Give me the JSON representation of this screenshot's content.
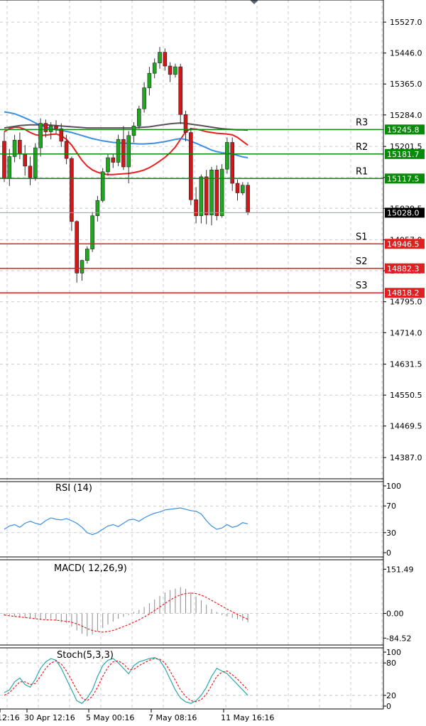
{
  "chart_data": [
    {
      "type": "candlestick",
      "panel": "price",
      "ylim": [
        14350,
        15570
      ],
      "y_ticks": [
        "15527.0",
        "15446.0",
        "15365.0",
        "15284.0",
        "15201.5",
        "15120.5",
        "15039.5",
        "14957.0",
        "14876.0",
        "14795.0",
        "14714.0",
        "14631.5",
        "14550.5",
        "14469.5",
        "14387.0"
      ],
      "current_price": "15028.0",
      "levels": [
        {
          "name": "R3",
          "value": 15245.8,
          "label": "15245.8",
          "color": "#0a8a0a"
        },
        {
          "name": "R2",
          "value": 15181.7,
          "label": "15181.7",
          "color": "#0a8a0a"
        },
        {
          "name": "R1",
          "value": 15117.5,
          "label": "15117.5",
          "color": "#0a8a0a"
        },
        {
          "name": "S1",
          "value": 14946.5,
          "label": "14946.5",
          "color": "#e02020"
        },
        {
          "name": "S2",
          "value": 14882.3,
          "label": "14882.3",
          "color": "#e02020"
        },
        {
          "name": "S3",
          "value": 14818.2,
          "label": "14818.2",
          "color": "#e02020"
        }
      ],
      "candles": [
        {
          "o": 15215,
          "h": 15240,
          "l": 15108,
          "c": 15118
        },
        {
          "o": 15118,
          "h": 15195,
          "l": 15098,
          "c": 15175
        },
        {
          "o": 15175,
          "h": 15232,
          "l": 15160,
          "c": 15218
        },
        {
          "o": 15218,
          "h": 15238,
          "l": 15168,
          "c": 15182
        },
        {
          "o": 15182,
          "h": 15205,
          "l": 15125,
          "c": 15150
        },
        {
          "o": 15150,
          "h": 15175,
          "l": 15100,
          "c": 15120
        },
        {
          "o": 15120,
          "h": 15210,
          "l": 15112,
          "c": 15198
        },
        {
          "o": 15198,
          "h": 15275,
          "l": 15175,
          "c": 15262
        },
        {
          "o": 15262,
          "h": 15272,
          "l": 15225,
          "c": 15240
        },
        {
          "o": 15240,
          "h": 15265,
          "l": 15220,
          "c": 15255
        },
        {
          "o": 15255,
          "h": 15270,
          "l": 15235,
          "c": 15248
        },
        {
          "o": 15248,
          "h": 15262,
          "l": 15200,
          "c": 15215
        },
        {
          "o": 15215,
          "h": 15232,
          "l": 15155,
          "c": 15170
        },
        {
          "o": 15170,
          "h": 15175,
          "l": 14980,
          "c": 15005
        },
        {
          "o": 15005,
          "h": 15008,
          "l": 14845,
          "c": 14870
        },
        {
          "o": 14870,
          "h": 14905,
          "l": 14850,
          "c": 14903
        },
        {
          "o": 14903,
          "h": 14940,
          "l": 14895,
          "c": 14933
        },
        {
          "o": 14933,
          "h": 15030,
          "l": 14925,
          "c": 15020
        },
        {
          "o": 15020,
          "h": 15072,
          "l": 15005,
          "c": 15060
        },
        {
          "o": 15060,
          "h": 15145,
          "l": 15055,
          "c": 15135
        },
        {
          "o": 15135,
          "h": 15182,
          "l": 15125,
          "c": 15172
        },
        {
          "o": 15172,
          "h": 15182,
          "l": 15145,
          "c": 15160
        },
        {
          "o": 15160,
          "h": 15232,
          "l": 15150,
          "c": 15220
        },
        {
          "o": 15220,
          "h": 15255,
          "l": 15140,
          "c": 15148
        },
        {
          "o": 15148,
          "h": 15242,
          "l": 15105,
          "c": 15230
        },
        {
          "o": 15230,
          "h": 15265,
          "l": 15212,
          "c": 15255
        },
        {
          "o": 15255,
          "h": 15308,
          "l": 15248,
          "c": 15300
        },
        {
          "o": 15300,
          "h": 15370,
          "l": 15290,
          "c": 15355
        },
        {
          "o": 15355,
          "h": 15410,
          "l": 15335,
          "c": 15393
        },
        {
          "o": 15393,
          "h": 15432,
          "l": 15380,
          "c": 15420
        },
        {
          "o": 15420,
          "h": 15462,
          "l": 15405,
          "c": 15448
        },
        {
          "o": 15448,
          "h": 15458,
          "l": 15400,
          "c": 15412
        },
        {
          "o": 15412,
          "h": 15422,
          "l": 15370,
          "c": 15390
        },
        {
          "o": 15390,
          "h": 15418,
          "l": 15382,
          "c": 15410
        },
        {
          "o": 15410,
          "h": 15418,
          "l": 15260,
          "c": 15285
        },
        {
          "o": 15285,
          "h": 15295,
          "l": 15215,
          "c": 15238
        },
        {
          "o": 15238,
          "h": 15250,
          "l": 15048,
          "c": 15062
        },
        {
          "o": 15062,
          "h": 15095,
          "l": 15000,
          "c": 15020
        },
        {
          "o": 15020,
          "h": 15128,
          "l": 15000,
          "c": 15122
        },
        {
          "o": 15122,
          "h": 15140,
          "l": 14998,
          "c": 15022
        },
        {
          "o": 15022,
          "h": 15148,
          "l": 14995,
          "c": 15140
        },
        {
          "o": 15140,
          "h": 15152,
          "l": 15008,
          "c": 15020
        },
        {
          "o": 15020,
          "h": 15155,
          "l": 15015,
          "c": 15142
        },
        {
          "o": 15142,
          "h": 15225,
          "l": 15130,
          "c": 15212
        },
        {
          "o": 15212,
          "h": 15225,
          "l": 15085,
          "c": 15105
        },
        {
          "o": 15105,
          "h": 15115,
          "l": 15060,
          "c": 15080
        },
        {
          "o": 15080,
          "h": 15108,
          "l": 15074,
          "c": 15100
        },
        {
          "o": 15100,
          "h": 15108,
          "l": 15022,
          "c": 15030
        }
      ],
      "overlays": [
        {
          "name": "MA red",
          "color": "#e82020",
          "values": [
            15240,
            15248,
            15252,
            15251,
            15246,
            15238,
            15232,
            15230,
            15231,
            15233,
            15234,
            15230,
            15220,
            15205,
            15185,
            15165,
            15150,
            15140,
            15134,
            15130,
            15128,
            15128,
            15129,
            15130,
            15131,
            15133,
            15136,
            15140,
            15146,
            15154,
            15163,
            15173,
            15185,
            15200,
            15220,
            15240,
            15248,
            15247,
            15244,
            15240,
            15238,
            15236,
            15235,
            15234,
            15232,
            15225,
            15215,
            15205
          ]
        },
        {
          "name": "MA blue",
          "color": "#3c8ee0",
          "values": [
            15292,
            15290,
            15287,
            15282,
            15276,
            15270,
            15263,
            15257,
            15252,
            15248,
            15245,
            15243,
            15241,
            15238,
            15234,
            15230,
            15226,
            15222,
            15219,
            15216,
            15214,
            15212,
            15211,
            15210,
            15210,
            15209,
            15208,
            15208,
            15209,
            15210,
            15212,
            15214,
            15217,
            15220,
            15222,
            15220,
            15215,
            15210,
            15204,
            15198,
            15192,
            15188,
            15185,
            15184,
            15182,
            15178,
            15174,
            15172
          ]
        },
        {
          "name": "MA gray",
          "color": "#555555",
          "values": [
            15250,
            15252,
            15254,
            15256,
            15257,
            15258,
            15258,
            15258,
            15258,
            15257,
            15256,
            15255,
            15254,
            15253,
            15252,
            15251,
            15250,
            15250,
            15250,
            15250,
            15250,
            15250,
            15250,
            15250,
            15250,
            15250,
            15251,
            15252,
            15253,
            15255,
            15257,
            15259,
            15261,
            15262,
            15263,
            15262,
            15260,
            15258,
            15256,
            15254,
            15252,
            15250,
            15248,
            15247,
            15246,
            15245,
            15245,
            15244
          ]
        }
      ]
    },
    {
      "type": "line",
      "panel": "rsi",
      "label": "RSI (14)",
      "ylim": [
        0,
        100
      ],
      "y_ticks": [
        "100",
        "70",
        "30",
        "0"
      ],
      "series": [
        {
          "color": "#3c8ee0",
          "values": [
            35,
            40,
            42,
            38,
            44,
            47,
            44,
            42,
            48,
            52,
            50,
            49,
            51,
            48,
            44,
            38,
            30,
            27,
            30,
            35,
            40,
            42,
            39,
            44,
            49,
            50,
            47,
            52,
            56,
            59,
            61,
            64,
            65,
            66,
            67,
            65,
            63,
            62,
            58,
            48,
            40,
            35,
            37,
            42,
            38,
            40,
            45,
            43
          ]
        }
      ]
    },
    {
      "type": "bar",
      "panel": "macd",
      "label": "MACD( 12,26,9)",
      "ylim": [
        -96,
        162
      ],
      "y_ticks": [
        "151.49",
        "0.00",
        "-84.52"
      ],
      "histogram": [
        -8,
        -5,
        -10,
        -12,
        -15,
        -14,
        -18,
        -22,
        -20,
        -18,
        -25,
        -30,
        -33,
        -45,
        -58,
        -70,
        -78,
        -72,
        -62,
        -50,
        -38,
        -28,
        -18,
        -12,
        -5,
        5,
        12,
        22,
        35,
        48,
        60,
        72,
        80,
        85,
        90,
        84,
        72,
        58,
        45,
        30,
        15,
        5,
        -5,
        -10,
        -15,
        -20,
        -25,
        -30
      ],
      "signal": [
        -5,
        -8,
        -10,
        -12,
        -14,
        -16,
        -18,
        -20,
        -22,
        -22,
        -23,
        -25,
        -27,
        -30,
        -36,
        -43,
        -52,
        -58,
        -62,
        -64,
        -62,
        -58,
        -52,
        -45,
        -38,
        -30,
        -22,
        -12,
        -2,
        10,
        22,
        34,
        46,
        56,
        64,
        68,
        70,
        68,
        63,
        55,
        45,
        35,
        25,
        15,
        6,
        -3,
        -12,
        -20
      ]
    },
    {
      "type": "line",
      "panel": "stoch",
      "label": "Stoch(5,3,3)",
      "ylim": [
        0,
        100
      ],
      "y_ticks": [
        "100",
        "80",
        "20",
        "0"
      ],
      "series": [
        {
          "name": "K",
          "color": "#2aa8a8",
          "values": [
            25,
            30,
            45,
            52,
            40,
            35,
            50,
            70,
            82,
            88,
            85,
            70,
            50,
            30,
            10,
            5,
            15,
            30,
            55,
            75,
            85,
            88,
            80,
            70,
            60,
            75,
            82,
            85,
            88,
            90,
            85,
            70,
            50,
            30,
            15,
            8,
            5,
            10,
            20,
            35,
            55,
            70,
            65,
            60,
            50,
            40,
            30,
            20
          ]
        },
        {
          "name": "D",
          "color": "#e82020",
          "values": [
            20,
            25,
            35,
            45,
            45,
            40,
            42,
            55,
            70,
            80,
            84,
            78,
            65,
            48,
            30,
            15,
            10,
            18,
            35,
            55,
            72,
            82,
            84,
            78,
            68,
            68,
            75,
            80,
            85,
            88,
            87,
            80,
            65,
            48,
            30,
            18,
            10,
            8,
            12,
            22,
            38,
            55,
            63,
            65,
            58,
            50,
            40,
            30
          ]
        }
      ]
    }
  ],
  "x_labels": [
    "12:16",
    "30 Apr 12:16",
    "5 May 00:16",
    "7 May 08:16",
    "11 May 16:16"
  ]
}
